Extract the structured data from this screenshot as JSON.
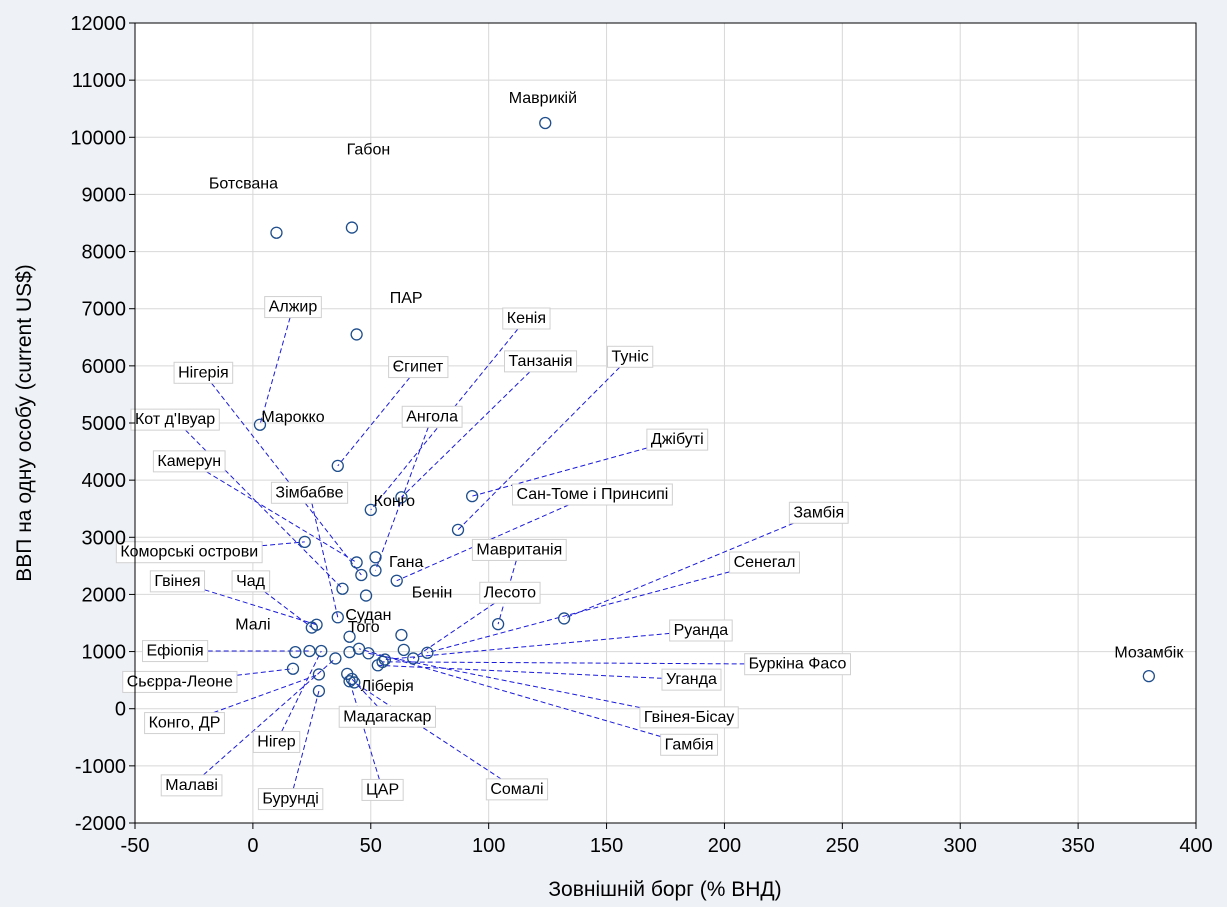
{
  "chart_data": {
    "type": "scatter",
    "title": "",
    "xlabel": "Зовнішній борг (% ВНД)",
    "ylabel": "ВВП на одну особу (current US$)",
    "xlim": [
      -50,
      400
    ],
    "ylim": [
      -2000,
      12000
    ],
    "xticks": [
      -50,
      0,
      50,
      100,
      150,
      200,
      250,
      300,
      350,
      400
    ],
    "yticks": [
      -2000,
      -1000,
      0,
      1000,
      2000,
      3000,
      4000,
      5000,
      6000,
      7000,
      8000,
      9000,
      10000,
      11000,
      12000
    ],
    "grid": true,
    "colors": {
      "marker": "#1f4e8c",
      "leader": "#1a1adb",
      "grid": "#d8d8d8",
      "label_box": "#d0d0d0"
    },
    "points": [
      {
        "x": 124,
        "y": 10250
      },
      {
        "x": 380,
        "y": 570
      },
      {
        "x": 42,
        "y": 8420
      },
      {
        "x": 10,
        "y": 8330
      },
      {
        "x": 44,
        "y": 6550
      },
      {
        "x": 3,
        "y": 4970
      },
      {
        "x": 36,
        "y": 4250
      },
      {
        "x": 93,
        "y": 3720
      },
      {
        "x": 63,
        "y": 3700
      },
      {
        "x": 50,
        "y": 3480
      },
      {
        "x": 87,
        "y": 3130
      },
      {
        "x": 22,
        "y": 2920
      },
      {
        "x": 52,
        "y": 2650
      },
      {
        "x": 44,
        "y": 2560
      },
      {
        "x": 52,
        "y": 2420
      },
      {
        "x": 46,
        "y": 2340
      },
      {
        "x": 61,
        "y": 2240
      },
      {
        "x": 38,
        "y": 2100
      },
      {
        "x": 48,
        "y": 1980
      },
      {
        "x": 132,
        "y": 1580
      },
      {
        "x": 104,
        "y": 1480
      },
      {
        "x": 36,
        "y": 1600
      },
      {
        "x": 27,
        "y": 1470
      },
      {
        "x": 25,
        "y": 1420
      },
      {
        "x": 63,
        "y": 1290
      },
      {
        "x": 41,
        "y": 1260
      },
      {
        "x": 64,
        "y": 1030
      },
      {
        "x": 74,
        "y": 980
      },
      {
        "x": 18,
        "y": 990
      },
      {
        "x": 24,
        "y": 1010
      },
      {
        "x": 29,
        "y": 1010
      },
      {
        "x": 41,
        "y": 990
      },
      {
        "x": 49,
        "y": 970
      },
      {
        "x": 68,
        "y": 880
      },
      {
        "x": 56,
        "y": 860
      },
      {
        "x": 55,
        "y": 820
      },
      {
        "x": 35,
        "y": 880
      },
      {
        "x": 53,
        "y": 760
      },
      {
        "x": 17,
        "y": 700
      },
      {
        "x": 45,
        "y": 1050
      },
      {
        "x": 28,
        "y": 600
      },
      {
        "x": 40,
        "y": 610
      },
      {
        "x": 42,
        "y": 520
      },
      {
        "x": 41,
        "y": 480
      },
      {
        "x": 43,
        "y": 460
      },
      {
        "x": 28,
        "y": 310
      }
    ],
    "labels": [
      {
        "text": "Маврикій",
        "x": 123,
        "y": 10600,
        "boxed": false,
        "anchor": [
          124,
          10250
        ]
      },
      {
        "text": "Габон",
        "x": 49,
        "y": 9700,
        "boxed": false,
        "anchor": [
          42,
          8420
        ]
      },
      {
        "text": "Ботсвана",
        "x": -4,
        "y": 9100,
        "boxed": false,
        "anchor": [
          10,
          8330
        ]
      },
      {
        "text": "ПАР",
        "x": 65,
        "y": 7100,
        "boxed": false,
        "anchor": [
          44,
          6550
        ]
      },
      {
        "text": "Мозамбік",
        "x": 380,
        "y": 900,
        "boxed": false,
        "anchor": [
          380,
          570
        ]
      },
      {
        "text": "Алжир",
        "x": 17,
        "y": 6950,
        "boxed": true,
        "anchor": [
          3,
          4970
        ]
      },
      {
        "text": "Кенія",
        "x": 116,
        "y": 6750,
        "boxed": true,
        "anchor": [
          50,
          3480
        ]
      },
      {
        "text": "Нігерія",
        "x": -21,
        "y": 5800,
        "boxed": true,
        "anchor": [
          46,
          2340
        ]
      },
      {
        "text": "Туніс",
        "x": 160,
        "y": 6080,
        "boxed": true,
        "anchor": [
          87,
          3130
        ]
      },
      {
        "text": "Танзанія",
        "x": 122,
        "y": 6000,
        "boxed": true,
        "anchor": [
          63,
          3700
        ]
      },
      {
        "text": "Єгипет",
        "x": 70,
        "y": 5900,
        "boxed": true,
        "anchor": [
          36,
          4250
        ]
      },
      {
        "text": "Марокко",
        "x": 17,
        "y": 5020,
        "boxed": false,
        "anchor": [
          52,
          2650
        ]
      },
      {
        "text": "Ангола",
        "x": 76,
        "y": 5030,
        "boxed": true,
        "anchor": [
          52,
          2420
        ]
      },
      {
        "text": "Кот д'Івуар",
        "x": -33,
        "y": 4980,
        "boxed": true,
        "anchor": [
          38,
          2100
        ]
      },
      {
        "text": "Джібуті",
        "x": 180,
        "y": 4630,
        "boxed": true,
        "anchor": [
          93,
          3720
        ]
      },
      {
        "text": "Камерун",
        "x": -27,
        "y": 4250,
        "boxed": true,
        "anchor": [
          44,
          2560
        ]
      },
      {
        "text": "Зімбабве",
        "x": 24,
        "y": 3700,
        "boxed": true,
        "anchor": [
          36,
          1600
        ]
      },
      {
        "text": "Конго",
        "x": 60,
        "y": 3550,
        "boxed": false,
        "anchor": [
          48,
          1980
        ]
      },
      {
        "text": "Сан-Томе і Принсипі",
        "x": 144,
        "y": 3670,
        "boxed": true,
        "anchor": [
          61,
          2240
        ]
      },
      {
        "text": "Замбія",
        "x": 240,
        "y": 3350,
        "boxed": true,
        "anchor": [
          132,
          1580
        ]
      },
      {
        "text": "Коморські острови",
        "x": -27,
        "y": 2660,
        "boxed": true,
        "anchor": [
          22,
          2920
        ]
      },
      {
        "text": "Мавританія",
        "x": 113,
        "y": 2700,
        "boxed": true,
        "anchor": [
          104,
          1480
        ]
      },
      {
        "text": "Гана",
        "x": 65,
        "y": 2480,
        "boxed": false,
        "anchor": [
          63,
          1290
        ]
      },
      {
        "text": "Сенегал",
        "x": 217,
        "y": 2480,
        "boxed": true,
        "anchor": [
          74,
          980
        ]
      },
      {
        "text": "Гвінея",
        "x": -32,
        "y": 2150,
        "boxed": true,
        "anchor": [
          27,
          1470
        ]
      },
      {
        "text": "Чад",
        "x": -1,
        "y": 2150,
        "boxed": true,
        "anchor": [
          25,
          1420
        ]
      },
      {
        "text": "Бенін",
        "x": 76,
        "y": 1950,
        "boxed": false,
        "anchor": [
          64,
          1030
        ]
      },
      {
        "text": "Лесото",
        "x": 109,
        "y": 1950,
        "boxed": true,
        "anchor": [
          68,
          880
        ]
      },
      {
        "text": "Судан",
        "x": 49,
        "y": 1550,
        "boxed": false,
        "anchor": [
          41,
          1260
        ]
      },
      {
        "text": "Малі",
        "x": 0,
        "y": 1390,
        "boxed": false,
        "anchor": [
          18,
          990
        ]
      },
      {
        "text": "Того",
        "x": 47,
        "y": 1340,
        "boxed": false,
        "anchor": [
          41,
          990
        ]
      },
      {
        "text": "Руанда",
        "x": 190,
        "y": 1290,
        "boxed": true,
        "anchor": [
          56,
          860
        ]
      },
      {
        "text": "Ефіопія",
        "x": -33,
        "y": 930,
        "boxed": true,
        "anchor": [
          24,
          1010
        ]
      },
      {
        "text": "Буркіна Фасо",
        "x": 231,
        "y": 700,
        "boxed": true,
        "anchor": [
          55,
          820
        ]
      },
      {
        "text": "Уганда",
        "x": 186,
        "y": 430,
        "boxed": true,
        "anchor": [
          53,
          760
        ]
      },
      {
        "text": "Сьєрра-Леоне",
        "x": -31,
        "y": 390,
        "boxed": true,
        "anchor": [
          17,
          700
        ]
      },
      {
        "text": "Ліберія",
        "x": 57,
        "y": 310,
        "boxed": false,
        "anchor": [
          40,
          610
        ]
      },
      {
        "text": "Гвінея-Бісау",
        "x": 185,
        "y": -230,
        "boxed": true,
        "anchor": [
          49,
          970
        ]
      },
      {
        "text": "Мадагаскар",
        "x": 57,
        "y": -220,
        "boxed": true,
        "anchor": [
          42,
          520
        ]
      },
      {
        "text": "Конго, ДР",
        "x": -29,
        "y": -330,
        "boxed": true,
        "anchor": [
          28,
          600
        ]
      },
      {
        "text": "Нігер",
        "x": 10,
        "y": -660,
        "boxed": true,
        "anchor": [
          29,
          1010
        ]
      },
      {
        "text": "Гамбія",
        "x": 185,
        "y": -710,
        "boxed": true,
        "anchor": [
          45,
          1050
        ]
      },
      {
        "text": "Малаві",
        "x": -26,
        "y": -1420,
        "boxed": true,
        "anchor": [
          35,
          880
        ]
      },
      {
        "text": "ЦАР",
        "x": 55,
        "y": -1500,
        "boxed": true,
        "anchor": [
          41,
          480
        ]
      },
      {
        "text": "Сомалі",
        "x": 112,
        "y": -1490,
        "boxed": true,
        "anchor": [
          43,
          460
        ]
      },
      {
        "text": "Бурунді",
        "x": 16,
        "y": -1660,
        "boxed": true,
        "anchor": [
          28,
          310
        ]
      }
    ]
  }
}
